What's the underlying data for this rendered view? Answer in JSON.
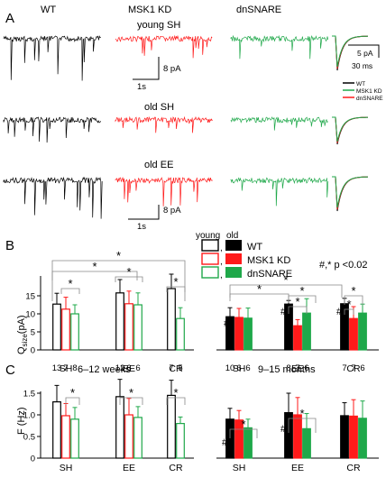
{
  "colors": {
    "wt": "#000000",
    "kd": "#ff1a1a",
    "dn": "#1fa84a"
  },
  "panel_a": {
    "letter": "A",
    "col_wt": "WT",
    "col_kd": "MSK1 KD",
    "col_dn": "dnSNARE",
    "row_labels": [
      "young SH",
      "old SH",
      "old EE"
    ],
    "scale1_y": "8 pA",
    "scale1_x": "1s",
    "scale2_y": "8 pA",
    "scale2_x": "1s",
    "inset_y": "5 pA",
    "inset_x": "30 ms",
    "inset_legend": [
      "WT",
      "MSK1 KD",
      "dnSNARE"
    ]
  },
  "panel_b": {
    "letter": "B",
    "legend_young": "young",
    "legend_old": "old",
    "legend_labels": [
      "WT",
      "MSK1 KD",
      "dnSNARE"
    ],
    "legend_comma": ",",
    "pvalue": "#,* p <0.02",
    "ylabel_main": "Q",
    "ylabel_sub": "size",
    "ylabel_unit": "(pA)"
  },
  "panel_c": {
    "letter": "C",
    "ylabel": "F (Hz)",
    "title_young": "6–12 weeks",
    "title_old": "9–15 months"
  },
  "marks": {
    "star": "*",
    "hash": "#"
  },
  "chart_data": [
    {
      "type": "bar",
      "panel": "B",
      "group": "young",
      "categories": [
        "SH",
        "EE",
        "CR"
      ],
      "series": [
        {
          "name": "WT",
          "values": [
            12.7,
            15.8,
            17.0
          ],
          "errors": [
            3.0,
            3.7,
            4.0
          ],
          "n": [
            13,
            12,
            7
          ]
        },
        {
          "name": "MSK1 KD",
          "values": [
            11.3,
            12.8,
            null
          ],
          "errors": [
            3.3,
            3.5,
            null
          ],
          "n": [
            7,
            6,
            null
          ]
        },
        {
          "name": "dnSNARE",
          "values": [
            10.0,
            12.5,
            8.7
          ],
          "errors": [
            2.5,
            3.3,
            3.0
          ],
          "n": [
            8,
            6,
            5
          ]
        }
      ],
      "ylim": [
        0,
        20
      ],
      "yticks": [
        "0",
        "5",
        "10",
        "15"
      ]
    },
    {
      "type": "bar",
      "panel": "B",
      "group": "old",
      "categories": [
        "SH",
        "EE",
        "CR"
      ],
      "series": [
        {
          "name": "WT",
          "values": [
            9.2,
            12.7,
            12.8
          ],
          "errors": [
            2.5,
            1.0,
            1.5
          ],
          "n": [
            10,
            8,
            7
          ]
        },
        {
          "name": "MSK1 KD",
          "values": [
            9.0,
            6.7,
            8.7
          ],
          "errors": [
            2.5,
            1.7,
            3.3
          ],
          "n": [
            6,
            7,
            7
          ]
        },
        {
          "name": "dnSNARE",
          "values": [
            8.8,
            10.2,
            10.2
          ],
          "errors": [
            2.8,
            4.0,
            2.5
          ],
          "n": [
            6,
            6,
            6
          ]
        }
      ],
      "ylim": [
        0,
        20
      ]
    },
    {
      "type": "bar",
      "panel": "C",
      "group": "6–12 weeks",
      "categories": [
        "SH",
        "EE",
        "CR"
      ],
      "series": [
        {
          "name": "WT",
          "values": [
            1.3,
            1.42,
            1.45
          ],
          "errors": [
            0.38,
            0.4,
            0.35
          ]
        },
        {
          "name": "MSK1 KD",
          "values": [
            0.98,
            1.0,
            null
          ],
          "errors": [
            0.28,
            0.38,
            null
          ]
        },
        {
          "name": "dnSNARE",
          "values": [
            0.9,
            0.94,
            0.8
          ],
          "errors": [
            0.27,
            0.25,
            0.15
          ]
        }
      ],
      "ylim": [
        0,
        1.5
      ],
      "yticks": [
        "0",
        "0.5",
        "1.0",
        "1.5"
      ]
    },
    {
      "type": "bar",
      "panel": "C",
      "group": "9–15 months",
      "categories": [
        "SH",
        "EE",
        "CR"
      ],
      "series": [
        {
          "name": "WT",
          "values": [
            0.9,
            1.05,
            0.98
          ],
          "errors": [
            0.25,
            0.45,
            0.3
          ]
        },
        {
          "name": "MSK1 KD",
          "values": [
            0.88,
            1.0,
            0.97
          ],
          "errors": [
            0.22,
            0.4,
            0.38
          ]
        },
        {
          "name": "dnSNARE",
          "values": [
            0.7,
            0.68,
            0.92
          ],
          "errors": [
            0.2,
            0.35,
            0.4
          ]
        }
      ],
      "ylim": [
        0,
        1.5
      ]
    }
  ]
}
